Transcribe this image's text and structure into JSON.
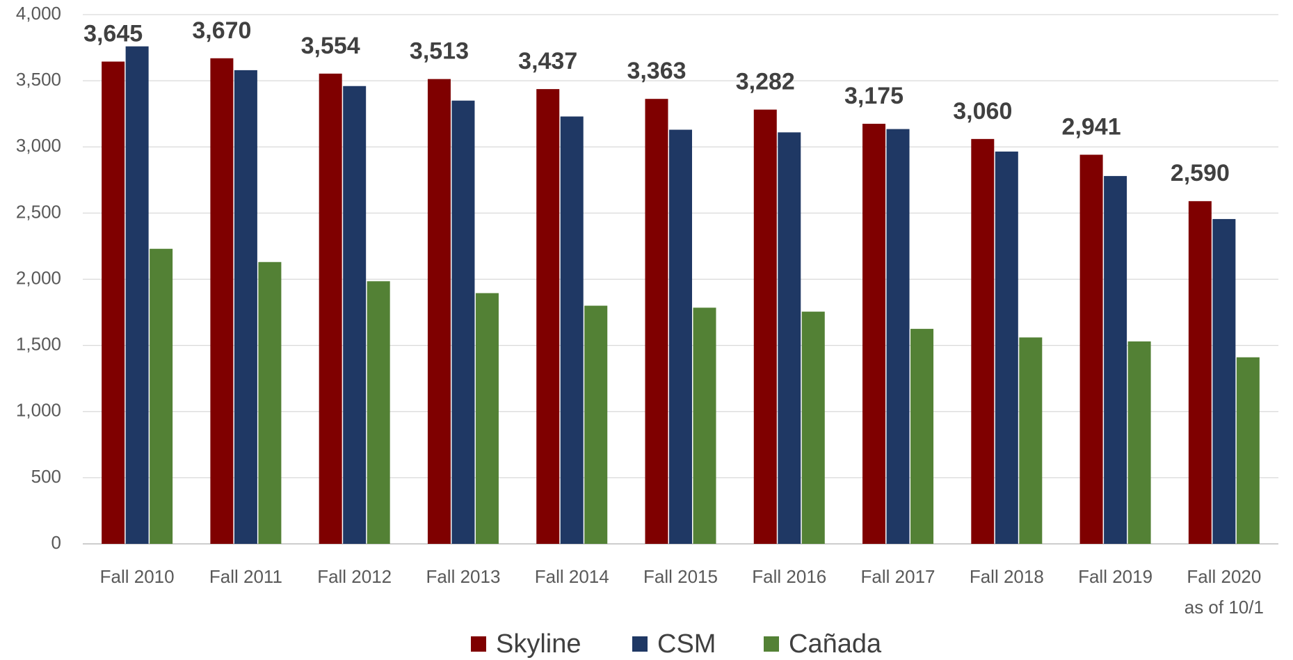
{
  "chart_data": {
    "type": "bar",
    "categories": [
      "Fall 2010",
      "Fall 2011",
      "Fall 2012",
      "Fall 2013",
      "Fall 2014",
      "Fall 2015",
      "Fall 2016",
      "Fall 2017",
      "Fall 2018",
      "Fall 2019",
      "Fall 2020\nas of 10/1"
    ],
    "series": [
      {
        "name": "Skyline",
        "color": "#7f0000",
        "values": [
          3645,
          3670,
          3554,
          3513,
          3437,
          3363,
          3282,
          3175,
          3060,
          2941,
          2590
        ],
        "value_labels": [
          "3,645",
          "3,670",
          "3,554",
          "3,513",
          "3,437",
          "3,363",
          "3,282",
          "3,175",
          "3,060",
          "2,941",
          "2,590"
        ]
      },
      {
        "name": "CSM",
        "color": "#1f3864",
        "values": [
          3760,
          3580,
          3460,
          3350,
          3230,
          3130,
          3110,
          3135,
          2965,
          2780,
          2455
        ]
      },
      {
        "name": "Cañada",
        "color": "#538135",
        "values": [
          2230,
          2130,
          1985,
          1895,
          1800,
          1785,
          1755,
          1625,
          1560,
          1530,
          1410
        ]
      }
    ],
    "ylim": [
      0,
      4000
    ],
    "yticks": [
      0,
      500,
      {
        "value": 1000,
        "label": "1,000"
      },
      {
        "value": 1500,
        "label": "1,500"
      },
      {
        "value": 2000,
        "label": "2,000"
      },
      {
        "value": 2500,
        "label": "2,500"
      },
      {
        "value": 3000,
        "label": "3,000"
      },
      {
        "value": 3500,
        "label": "3,500"
      },
      {
        "value": 4000,
        "label": "4,000"
      }
    ],
    "grid": true,
    "legend": "bottom"
  }
}
